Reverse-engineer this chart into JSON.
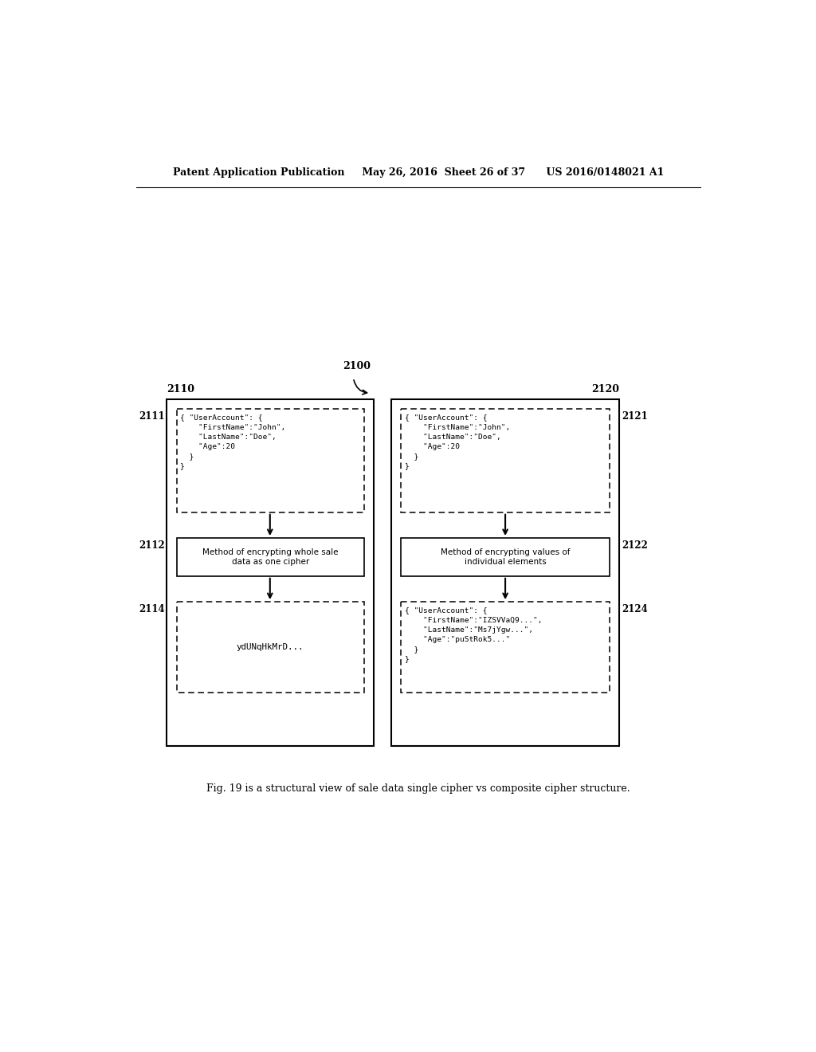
{
  "header": "Patent Application Publication     May 26, 2016  Sheet 26 of 37      US 2016/0148021 A1",
  "fig_caption": "Fig. 19 is a structural view of sale data single cipher vs composite cipher structure.",
  "label_2100": "2100",
  "label_2110": "2110",
  "label_2120": "2120",
  "label_2111": "2111",
  "label_2121": "2121",
  "label_2112": "2112",
  "label_2122": "2122",
  "label_2114": "2114",
  "label_2124": "2124",
  "box1_text": "{ \"UserAccount\": {\n    \"FirstName\":\"John\",\n    \"LastName\":\"Doe\",\n    \"Age\":20\n  }\n}",
  "box2_text": "{ \"UserAccount\": {\n    \"FirstName\":\"John\",\n    \"LastName\":\"Doe\",\n    \"Age\":20\n  }\n}",
  "method1_text": "Method of encrypting whole sale\ndata as one cipher",
  "method2_text": "Method of encrypting values of\nindividual elements",
  "output1_text": "ydUNqHkMrD...",
  "output2_text": "{ \"UserAccount\": {\n    \"FirstName\":\"IZSVVaQ9...\",\n    \"LastName\":\"Ms7jYgw...\",\n    \"Age\":\"puStRok5...\"\n  }\n}",
  "bg_color": "#ffffff",
  "text_color": "#000000"
}
